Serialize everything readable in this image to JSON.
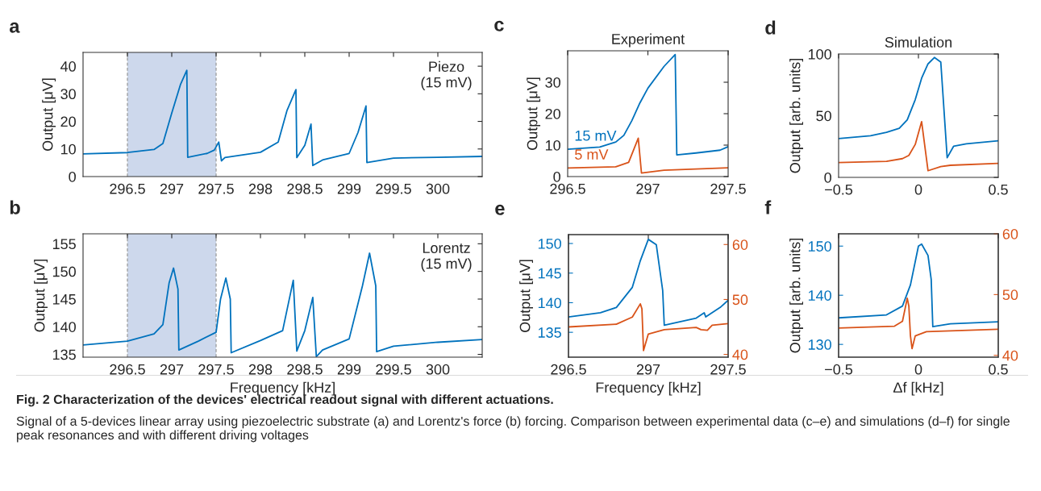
{
  "chart_data": [
    {
      "type": "line",
      "ylabel": "Output [μV]",
      "annotations": [
        "a",
        "Piezo\n(15 mV)"
      ],
      "xlim": [
        296.0,
        300.5
      ],
      "ylim": [
        0,
        45
      ],
      "xticks": [
        296.5,
        297,
        297.5,
        298,
        298.5,
        299,
        299.5,
        300
      ],
      "yticks": [
        0,
        10,
        20,
        30,
        40
      ],
      "bands": [
        {
          "axis": "x",
          "from": 296.5,
          "to": 297.5,
          "color": "#cdd8ec"
        }
      ],
      "series": [
        {
          "color": "#0072bd",
          "x": [
            296.0,
            296.5,
            296.8,
            296.9,
            297.0,
            297.1,
            297.17,
            297.18,
            297.4,
            297.48,
            297.53,
            297.56,
            297.6,
            298.0,
            298.2,
            298.3,
            298.4,
            298.41,
            298.5,
            298.57,
            298.59,
            298.7,
            299.0,
            299.1,
            299.19,
            299.2,
            299.5,
            300.0,
            300.5
          ],
          "values": [
            8.2,
            8.7,
            9.8,
            12,
            23,
            33.5,
            38.5,
            7,
            8.4,
            9.6,
            12.5,
            5.7,
            6.9,
            8.8,
            12.5,
            24,
            31.5,
            6.9,
            11.3,
            19,
            4,
            6,
            8.4,
            16,
            25.6,
            5.1,
            6.7,
            7,
            7.3
          ]
        }
      ]
    },
    {
      "type": "line",
      "xlabel": "Frequency [kHz]",
      "ylabel": "Output [μV]",
      "annotations": [
        "b",
        "Lorentz\n(15 mV)"
      ],
      "xlim": [
        296.0,
        300.5
      ],
      "ylim": [
        134.5,
        156.8
      ],
      "xticks": [
        296.5,
        297,
        297.5,
        298,
        298.5,
        299,
        299.5,
        300
      ],
      "yticks": [
        135,
        140,
        145,
        150,
        155
      ],
      "bands": [
        {
          "axis": "x",
          "from": 296.5,
          "to": 297.5,
          "color": "#cdd8ec"
        }
      ],
      "series": [
        {
          "color": "#0072bd",
          "x": [
            296.0,
            296.5,
            296.8,
            296.9,
            296.97,
            297.02,
            297.07,
            297.08,
            297.3,
            297.5,
            297.55,
            297.61,
            297.66,
            297.67,
            298.0,
            298.25,
            298.37,
            298.41,
            298.5,
            298.59,
            298.63,
            298.7,
            299.0,
            299.15,
            299.23,
            299.3,
            299.31,
            299.5,
            300.0,
            300.5
          ],
          "values": [
            136.7,
            137.4,
            138.7,
            140.4,
            147.9,
            150.6,
            146.8,
            135.8,
            137.4,
            139,
            145,
            148.8,
            145,
            135.3,
            137.5,
            139.3,
            148.4,
            135.6,
            139.3,
            145.3,
            134.6,
            135.8,
            137.8,
            147.4,
            153.3,
            147.4,
            135.5,
            136.5,
            137.2,
            137.7
          ]
        }
      ]
    },
    {
      "type": "line",
      "title": "Experiment",
      "ylabel": "Output [μV]",
      "annotations": [
        "c"
      ],
      "xlim": [
        296.5,
        297.5
      ],
      "ylim": [
        0,
        40
      ],
      "xticks": [
        296.5,
        297,
        297.5
      ],
      "yticks": [
        0,
        10,
        20,
        30
      ],
      "series": [
        {
          "name": "15 mV",
          "color": "#0072bd",
          "x": [
            296.5,
            296.7,
            296.8,
            296.85,
            296.9,
            296.95,
            297.0,
            297.1,
            297.17,
            297.18,
            297.3,
            297.45,
            297.5
          ],
          "values": [
            8.7,
            9.4,
            11,
            13.1,
            17.8,
            23.4,
            28.1,
            35,
            38.8,
            6.9,
            7.5,
            8.4,
            9.5
          ]
        },
        {
          "name": "5 mV",
          "color": "#d95319",
          "x": [
            296.5,
            296.8,
            296.88,
            296.94,
            296.96,
            297.1,
            297.5
          ],
          "values": [
            2.7,
            3.1,
            4.5,
            12.2,
            1.1,
            2,
            2.8
          ]
        }
      ]
    },
    {
      "type": "line",
      "title": "Simulation",
      "ylabel": "Output [arb. units]",
      "annotations": [
        "d"
      ],
      "xlim": [
        -0.5,
        0.5
      ],
      "ylim": [
        0,
        100
      ],
      "xticks": [
        {
          "value": -0.5,
          "label": "−0.5"
        },
        0,
        0.5
      ],
      "yticks": [
        0,
        50,
        100
      ],
      "series": [
        {
          "color": "#0072bd",
          "x": [
            -0.5,
            -0.3,
            -0.2,
            -0.12,
            -0.07,
            -0.02,
            0.02,
            0.06,
            0.1,
            0.14,
            0.18,
            0.22,
            0.3,
            0.5
          ],
          "values": [
            31.5,
            33.7,
            36.5,
            39.8,
            46.7,
            63,
            80.4,
            92,
            97.2,
            93.5,
            15.9,
            25.2,
            27.2,
            29.6
          ]
        },
        {
          "color": "#d95319",
          "x": [
            -0.5,
            -0.2,
            -0.1,
            -0.06,
            -0.02,
            0.02,
            0.06,
            0.14,
            0.2,
            0.5
          ],
          "values": [
            12,
            13,
            15.2,
            17.8,
            26.7,
            45.2,
            5.4,
            8.7,
            9.8,
            11.3
          ]
        }
      ]
    },
    {
      "type": "line",
      "xlabel": "Frequency [kHz]",
      "ylabel": "Output [μV]",
      "annotations": [
        "e"
      ],
      "xlim": [
        296.5,
        297.5
      ],
      "ylim": [
        130.8,
        151.5
      ],
      "y2lim": [
        39.5,
        61.8
      ],
      "xticks": [
        296.5,
        297,
        297.5
      ],
      "yticks": [
        135,
        140,
        145,
        150
      ],
      "y2ticks": [
        40,
        50,
        60
      ],
      "series": [
        {
          "color": "#0072bd",
          "x": [
            296.5,
            296.7,
            296.8,
            296.9,
            296.95,
            297.0,
            297.05,
            297.09,
            297.1,
            297.3,
            297.35,
            297.36,
            297.45,
            297.5
          ],
          "values": [
            137.6,
            138.3,
            139.2,
            142.6,
            147.1,
            150.7,
            149.8,
            142.1,
            136.2,
            137.4,
            138.3,
            137.6,
            139.2,
            140.4
          ]
        },
        {
          "color": "#d95319",
          "axis": "y2",
          "x": [
            296.5,
            296.8,
            296.9,
            296.95,
            296.96,
            296.97,
            297.0,
            297.1,
            297.3,
            297.33,
            297.37,
            297.4,
            297.5
          ],
          "values": [
            45,
            45.5,
            46.8,
            49.2,
            48.3,
            40.7,
            43.7,
            44.5,
            44.9,
            44.5,
            44.4,
            45.3,
            45.6
          ]
        }
      ]
    },
    {
      "type": "line",
      "xlabel": "Δf [kHz]",
      "ylabel": "Output [arb. units]",
      "annotations": [
        "f"
      ],
      "xlim": [
        -0.5,
        0.5
      ],
      "ylim": [
        127.4,
        152.5
      ],
      "y2lim": [
        39.7,
        60
      ],
      "xticks": [
        {
          "value": -0.5,
          "label": "−0.5"
        },
        0,
        0.5
      ],
      "yticks": [
        130,
        140,
        150
      ],
      "y2ticks": [
        40,
        50,
        60
      ],
      "series": [
        {
          "color": "#0072bd",
          "x": [
            -0.5,
            -0.2,
            -0.1,
            -0.05,
            0.0,
            0.02,
            0.06,
            0.08,
            0.09,
            0.2,
            0.5
          ],
          "values": [
            135.4,
            136,
            137.8,
            142.1,
            150,
            150.4,
            148.1,
            143.2,
            133.6,
            134.2,
            134.6
          ]
        },
        {
          "color": "#d95319",
          "axis": "y2",
          "x": [
            -0.5,
            -0.15,
            -0.1,
            -0.07,
            -0.06,
            -0.05,
            -0.04,
            -0.02,
            0.05,
            0.5
          ],
          "values": [
            44.5,
            44.8,
            45.6,
            49.4,
            48.1,
            43.2,
            41.1,
            43.2,
            43.9,
            44.3
          ]
        }
      ]
    },
    {
      "type": "other",
      "title": "Fig. 2 Characterization of the devices' electrical readout signal with different actuations.",
      "annotations": [
        "Signal of a 5-devices linear array using piezoelectric substrate (a) and Lorentz's force (b) forcing. Comparison between experimental data (c–e) and simulations (d–f) for single peak resonances and with different driving voltages"
      ]
    }
  ]
}
